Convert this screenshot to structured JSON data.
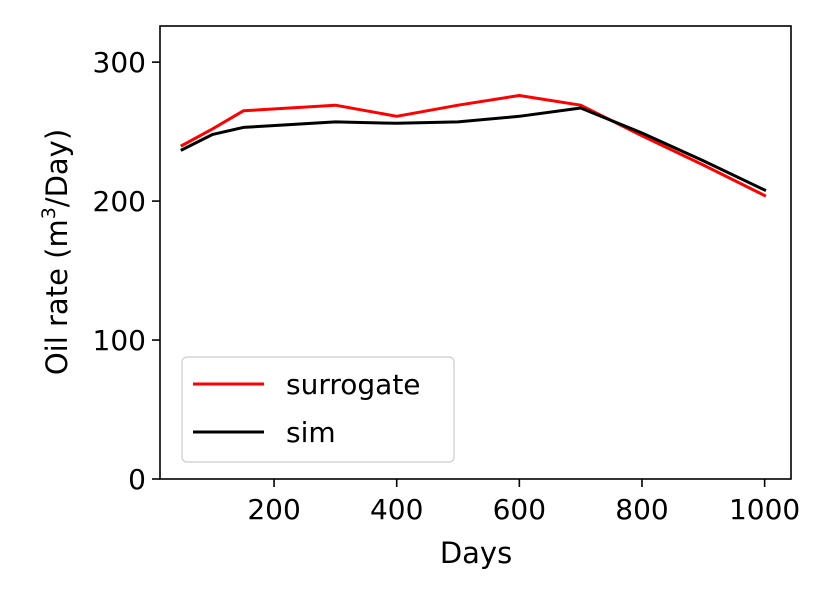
{
  "chart_data": {
    "type": "line",
    "xlabel": "Days",
    "ylabel_prefix": "Oil rate (m",
    "ylabel_superscript": "3",
    "ylabel_suffix": "/Day)",
    "xlim": [
      14,
      1043
    ],
    "ylim": [
      0,
      326
    ],
    "xticks": [
      200,
      400,
      600,
      800,
      1000
    ],
    "yticks": [
      0,
      100,
      200,
      300
    ],
    "grid": false,
    "legend_position": "lower-left",
    "series": [
      {
        "name": "surrogate",
        "color": "#ff0000",
        "x": [
          50,
          100,
          150,
          300,
          400,
          500,
          600,
          700,
          800,
          900,
          1000
        ],
        "y": [
          240,
          252,
          265,
          269,
          261,
          269,
          276,
          269,
          247,
          226,
          204
        ]
      },
      {
        "name": "sim",
        "color": "#000000",
        "x": [
          50,
          100,
          150,
          300,
          400,
          500,
          600,
          700,
          800,
          900,
          1000
        ],
        "y": [
          237,
          248,
          253,
          257,
          256,
          257,
          261,
          267,
          249,
          229,
          208
        ]
      }
    ]
  }
}
